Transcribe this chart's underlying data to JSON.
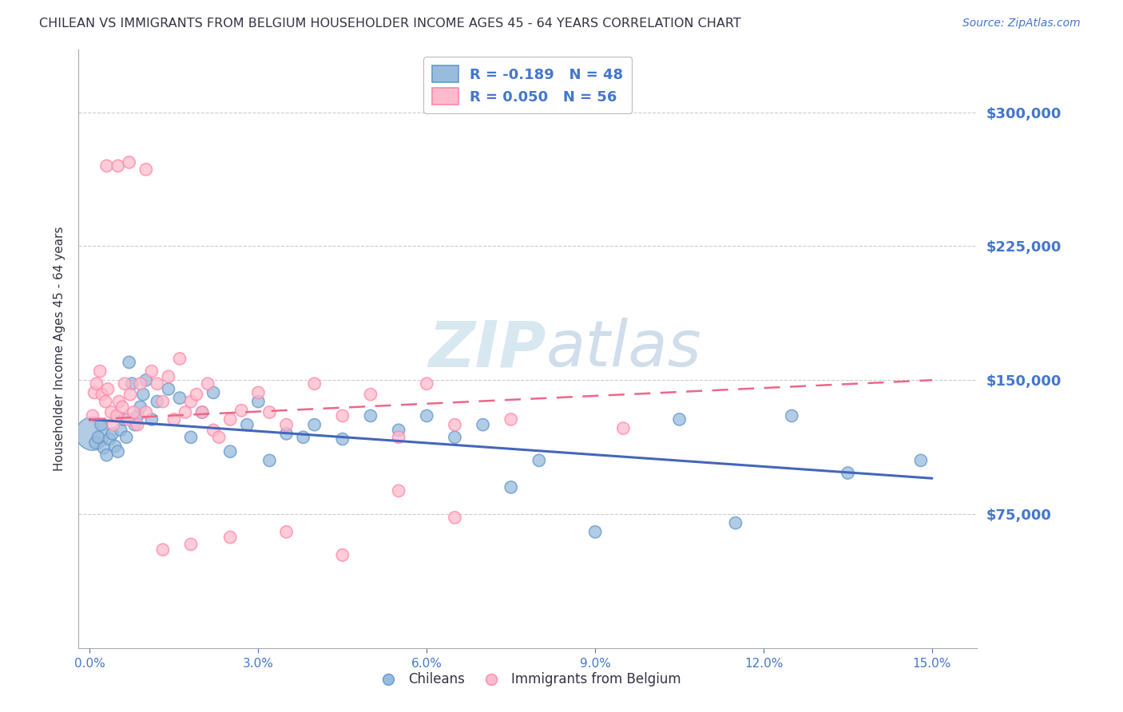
{
  "title": "CHILEAN VS IMMIGRANTS FROM BELGIUM HOUSEHOLDER INCOME AGES 45 - 64 YEARS CORRELATION CHART",
  "source": "Source: ZipAtlas.com",
  "ylabel": "Householder Income Ages 45 - 64 years",
  "ytick_labels": [
    "$75,000",
    "$150,000",
    "$225,000",
    "$300,000"
  ],
  "ytick_vals": [
    75000,
    150000,
    225000,
    300000
  ],
  "ylim": [
    0,
    335000
  ],
  "xlim": [
    -0.2,
    15.8
  ],
  "color_chilean_fill": "#99BBDD",
  "color_chilean_edge": "#6699CC",
  "color_belgium_fill": "#FFBBCC",
  "color_belgium_edge": "#FF88AA",
  "color_chilean_line": "#4466BB",
  "color_belgium_line": "#EE6688",
  "color_text_blue": "#4477CC",
  "color_text_dark": "#333344",
  "watermark_color": "#D8E8F0",
  "grid_color": "#CCCCCC",
  "background_color": "#FFFFFF",
  "chilean_x": [
    0.05,
    0.1,
    0.15,
    0.2,
    0.25,
    0.3,
    0.35,
    0.4,
    0.45,
    0.5,
    0.55,
    0.6,
    0.65,
    0.7,
    0.75,
    0.8,
    0.85,
    0.9,
    0.95,
    1.0,
    1.1,
    1.2,
    1.4,
    1.6,
    1.8,
    2.0,
    2.2,
    2.5,
    2.8,
    3.0,
    3.2,
    3.5,
    3.8,
    4.0,
    4.5,
    5.0,
    5.5,
    6.0,
    6.5,
    7.0,
    7.5,
    8.0,
    9.0,
    10.5,
    11.5,
    12.5,
    13.5,
    14.8
  ],
  "chilean_y": [
    120000,
    115000,
    118000,
    125000,
    112000,
    108000,
    117000,
    120000,
    113000,
    110000,
    122000,
    128000,
    118000,
    160000,
    148000,
    125000,
    130000,
    135000,
    142000,
    150000,
    128000,
    138000,
    145000,
    140000,
    118000,
    132000,
    143000,
    110000,
    125000,
    138000,
    105000,
    120000,
    118000,
    125000,
    117000,
    130000,
    122000,
    130000,
    118000,
    125000,
    90000,
    105000,
    65000,
    128000,
    70000,
    130000,
    98000,
    105000
  ],
  "belgium_x": [
    0.05,
    0.08,
    0.12,
    0.18,
    0.22,
    0.28,
    0.32,
    0.38,
    0.42,
    0.48,
    0.52,
    0.58,
    0.62,
    0.68,
    0.72,
    0.78,
    0.85,
    0.9,
    1.0,
    1.1,
    1.2,
    1.3,
    1.4,
    1.5,
    1.6,
    1.7,
    1.8,
    1.9,
    2.0,
    2.1,
    2.2,
    2.3,
    2.5,
    2.7,
    3.0,
    3.2,
    3.5,
    4.0,
    4.5,
    5.0,
    5.5,
    6.0,
    6.5,
    7.5,
    9.5,
    0.3,
    0.5,
    0.7,
    1.0,
    1.3,
    1.8,
    2.5,
    3.5,
    4.5,
    5.5,
    6.5
  ],
  "belgium_y": [
    130000,
    143000,
    148000,
    155000,
    142000,
    138000,
    145000,
    132000,
    125000,
    130000,
    138000,
    135000,
    148000,
    128000,
    142000,
    132000,
    125000,
    148000,
    132000,
    155000,
    148000,
    138000,
    152000,
    128000,
    162000,
    132000,
    138000,
    142000,
    132000,
    148000,
    122000,
    118000,
    128000,
    133000,
    143000,
    132000,
    125000,
    148000,
    130000,
    142000,
    88000,
    148000,
    73000,
    128000,
    123000,
    270000,
    270000,
    272000,
    268000,
    55000,
    58000,
    62000,
    65000,
    52000,
    118000,
    125000
  ],
  "chilean_line_x": [
    0.0,
    15.0
  ],
  "chilean_line_y": [
    128000,
    95000
  ],
  "belgium_line_x": [
    0.0,
    15.0
  ],
  "belgium_line_y": [
    128000,
    150000
  ],
  "marker_size": 120,
  "big_marker_x": 0.05,
  "big_marker_y": 120000,
  "big_marker_size": 900
}
